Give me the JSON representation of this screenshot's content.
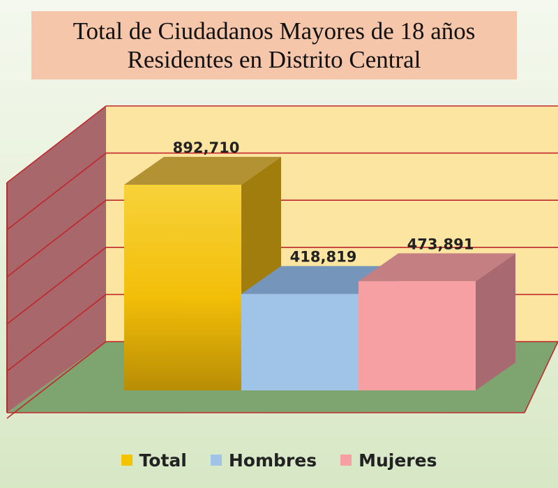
{
  "chart_data": {
    "type": "bar",
    "title_line1": "Total de Ciudadanos Mayores de 18 años",
    "title_line2": "Residentes en Distrito Central",
    "categories": [
      "Total",
      "Hombres",
      "Mujeres"
    ],
    "series": [
      {
        "name": "Total",
        "value": 892710,
        "label": "892,710",
        "color": "#f5c400"
      },
      {
        "name": "Hombres",
        "value": 418819,
        "label": "418,819",
        "color": "#9fc4e8"
      },
      {
        "name": "Mujeres",
        "value": 473891,
        "label": "473,891",
        "color": "#f6a0a4"
      }
    ],
    "ylim": [
      0,
      1000000
    ],
    "grid": true,
    "legend_position": "bottom",
    "colors": {
      "back_wall": "#fce5a0",
      "side_wall": "#a8676a",
      "floor": "#7ea46f",
      "gridline": "#c0262a"
    }
  }
}
